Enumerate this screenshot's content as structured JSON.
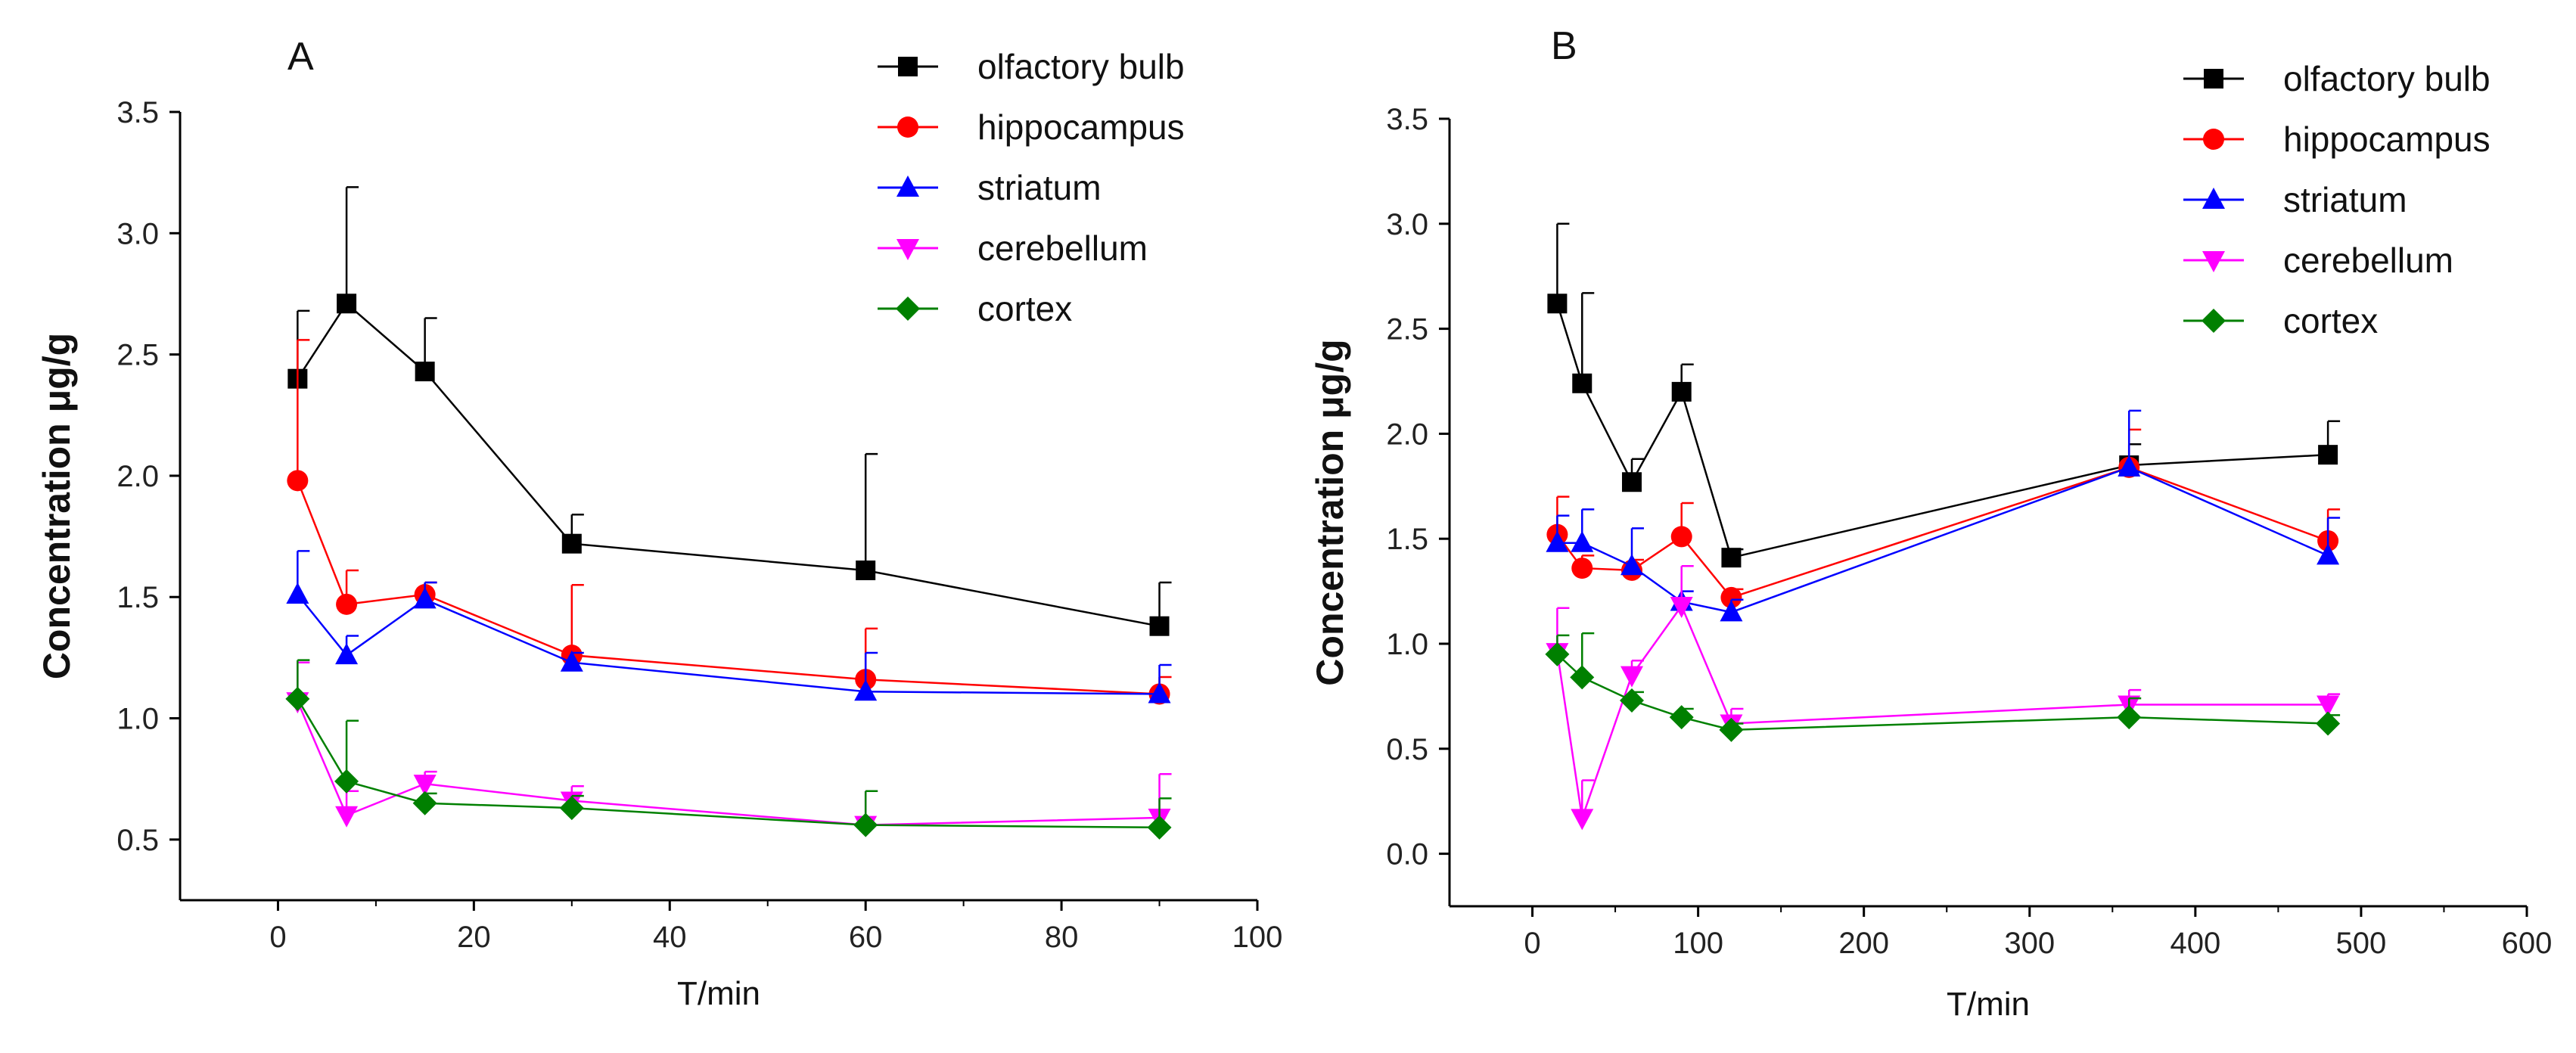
{
  "chart_data": [
    {
      "type": "line",
      "panel": "A",
      "xlabel": "T/min",
      "ylabel": "Concentration  μg/g",
      "xlim": [
        -10,
        100
      ],
      "ylim": [
        0.25,
        3.5
      ],
      "xticks": [
        0,
        20,
        40,
        60,
        80,
        100
      ],
      "xtick_labels": [
        "0",
        "20",
        "40",
        "60",
        "80",
        "100"
      ],
      "yticks": [
        0.5,
        1.0,
        1.5,
        2.0,
        2.5,
        3.0,
        3.5
      ],
      "ytick_labels": [
        "0.5",
        "1.0",
        "1.5",
        "2.0",
        "2.5",
        "3.0",
        "3.5"
      ],
      "legend_position": "top-right",
      "series": [
        {
          "name": "olfactory bulb",
          "color": "#000000",
          "marker": "square",
          "x": [
            2,
            7,
            15,
            30,
            60,
            90
          ],
          "y": [
            2.4,
            2.71,
            2.43,
            1.72,
            1.61,
            1.38
          ],
          "err": [
            0.28,
            0.48,
            0.22,
            0.12,
            0.48,
            0.18
          ]
        },
        {
          "name": "hippocampus",
          "color": "#ff0000",
          "marker": "circle",
          "x": [
            2,
            7,
            15,
            30,
            60,
            90
          ],
          "y": [
            1.98,
            1.47,
            1.51,
            1.26,
            1.16,
            1.1
          ],
          "err": [
            0.58,
            0.14,
            0.05,
            0.29,
            0.21,
            0.07
          ]
        },
        {
          "name": "striatum",
          "color": "#0000ff",
          "marker": "triangle-up",
          "x": [
            2,
            7,
            15,
            30,
            60,
            90
          ],
          "y": [
            1.51,
            1.26,
            1.49,
            1.23,
            1.11,
            1.1
          ],
          "err": [
            0.18,
            0.08,
            0.07,
            0.04,
            0.16,
            0.12
          ]
        },
        {
          "name": "cerebellum",
          "color": "#ff00ff",
          "marker": "triangle-down",
          "x": [
            2,
            7,
            15,
            30,
            60,
            90
          ],
          "y": [
            1.07,
            0.6,
            0.73,
            0.66,
            0.56,
            0.59
          ],
          "err": [
            0.16,
            0.1,
            0.05,
            0.06,
            0.14,
            0.18
          ]
        },
        {
          "name": "cortex",
          "color": "#008000",
          "marker": "diamond",
          "x": [
            2,
            7,
            15,
            30,
            60,
            90
          ],
          "y": [
            1.08,
            0.74,
            0.65,
            0.63,
            0.56,
            0.55
          ],
          "err": [
            0.16,
            0.25,
            0.04,
            0.05,
            0.14,
            0.12
          ]
        }
      ]
    },
    {
      "type": "line",
      "panel": "B",
      "xlabel": "T/min",
      "ylabel": "Concentration  μg/g",
      "xlim": [
        -50,
        600
      ],
      "ylim": [
        -0.25,
        3.5
      ],
      "xticks": [
        0,
        100,
        200,
        300,
        400,
        500,
        600
      ],
      "xtick_labels": [
        "0",
        "100",
        "200",
        "300",
        "400",
        "500",
        "600"
      ],
      "yticks": [
        0.0,
        0.5,
        1.0,
        1.5,
        2.0,
        2.5,
        3.0,
        3.5
      ],
      "ytick_labels": [
        "0.0",
        "0.5",
        "1.0",
        "1.5",
        "2.0",
        "2.5",
        "3.0",
        "3.5"
      ],
      "legend_position": "top-right",
      "series": [
        {
          "name": "olfactory bulb",
          "color": "#000000",
          "marker": "square",
          "x": [
            15,
            30,
            60,
            90,
            120,
            360,
            480
          ],
          "y": [
            2.62,
            2.24,
            1.77,
            2.2,
            1.41,
            1.85,
            1.9
          ],
          "err": [
            0.38,
            0.43,
            0.11,
            0.13,
            0.04,
            0.1,
            0.16
          ]
        },
        {
          "name": "hippocampus",
          "color": "#ff0000",
          "marker": "circle",
          "x": [
            15,
            30,
            60,
            90,
            120,
            360,
            480
          ],
          "y": [
            1.52,
            1.36,
            1.35,
            1.51,
            1.22,
            1.84,
            1.49
          ],
          "err": [
            0.18,
            0.06,
            0.05,
            0.16,
            0.04,
            0.18,
            0.15
          ]
        },
        {
          "name": "striatum",
          "color": "#0000ff",
          "marker": "triangle-up",
          "x": [
            15,
            30,
            60,
            90,
            120,
            360,
            480
          ],
          "y": [
            1.48,
            1.48,
            1.37,
            1.2,
            1.15,
            1.84,
            1.42
          ],
          "err": [
            0.13,
            0.16,
            0.18,
            0.05,
            0.06,
            0.27,
            0.18
          ]
        },
        {
          "name": "cerebellum",
          "color": "#ff00ff",
          "marker": "triangle-down",
          "x": [
            15,
            30,
            60,
            90,
            120,
            360,
            480
          ],
          "y": [
            0.96,
            0.17,
            0.85,
            1.18,
            0.62,
            0.71,
            0.71
          ],
          "err": [
            0.21,
            0.18,
            0.07,
            0.19,
            0.07,
            0.07,
            0.05
          ]
        },
        {
          "name": "cortex",
          "color": "#008000",
          "marker": "diamond",
          "x": [
            15,
            30,
            60,
            90,
            120,
            360,
            480
          ],
          "y": [
            0.95,
            0.84,
            0.73,
            0.65,
            0.59,
            0.65,
            0.62
          ],
          "err": [
            0.09,
            0.21,
            0.04,
            0.04,
            0.03,
            0.09,
            0.04
          ]
        }
      ]
    }
  ]
}
